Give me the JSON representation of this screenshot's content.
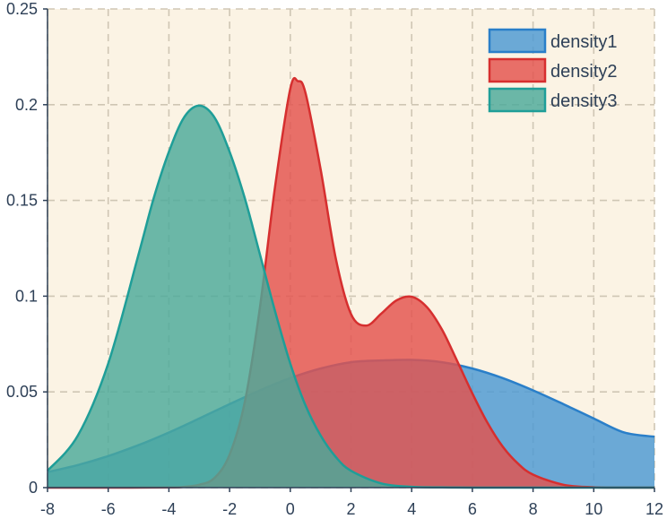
{
  "chart_data": {
    "type": "area",
    "title": "",
    "xlabel": "",
    "ylabel": "",
    "xlim": [
      -8,
      12
    ],
    "ylim": [
      0,
      0.25
    ],
    "x_ticks": [
      "-8",
      "-6",
      "-4",
      "-2",
      "0",
      "2",
      "4",
      "6",
      "8",
      "10",
      "12"
    ],
    "y_ticks": [
      "0",
      "0.05",
      "0.1",
      "0.15",
      "0.2",
      "0.25"
    ],
    "grid": true,
    "legend_position": "top-right",
    "plot_background": "#fbf3e4",
    "series": [
      {
        "name": "density1",
        "fill": "#4a98d3",
        "stroke": "#2a7fc9",
        "x": [
          -8,
          -7,
          -6,
          -5,
          -4,
          -3,
          -2,
          -1,
          0,
          1,
          2,
          3,
          4,
          5,
          6,
          7,
          8,
          9,
          10,
          11,
          12
        ],
        "y": [
          0.0081,
          0.0118,
          0.0165,
          0.0222,
          0.0288,
          0.0361,
          0.0436,
          0.0508,
          0.0572,
          0.0622,
          0.0655,
          0.0664,
          0.0667,
          0.0655,
          0.0622,
          0.0572,
          0.0508,
          0.0436,
          0.0361,
          0.0288,
          0.0266
        ]
      },
      {
        "name": "density2",
        "fill": "#e3524d",
        "stroke": "#d62f2f",
        "x": [
          -8,
          -6,
          -4,
          -3.5,
          -3,
          -2.5,
          -2,
          -1.5,
          -1,
          -0.5,
          0,
          0.25,
          0.5,
          1,
          1.5,
          2,
          2.5,
          3,
          3.5,
          4,
          4.5,
          5,
          5.5,
          6,
          6.5,
          7,
          7.5,
          8,
          9,
          10,
          11,
          12
        ],
        "y": [
          0,
          0,
          0.0001,
          0.0004,
          0.0015,
          0.005,
          0.0172,
          0.0446,
          0.0941,
          0.1573,
          0.2083,
          0.2123,
          0.2062,
          0.1662,
          0.1196,
          0.0907,
          0.0846,
          0.0909,
          0.0978,
          0.0997,
          0.0943,
          0.0825,
          0.0661,
          0.0492,
          0.0338,
          0.0214,
          0.0126,
          0.0068,
          0.0015,
          0.0002,
          0,
          0
        ]
      },
      {
        "name": "density3",
        "fill": "#4aaa9a",
        "stroke": "#1f9e98",
        "x": [
          -8,
          -7,
          -6,
          -5,
          -4.5,
          -4,
          -3.5,
          -3,
          -2.5,
          -2,
          -1.5,
          -1,
          -0.5,
          0,
          0.5,
          1,
          1.5,
          2,
          3,
          4,
          5,
          6,
          8,
          10,
          12
        ],
        "y": [
          0.0088,
          0.0272,
          0.0648,
          0.1218,
          0.1512,
          0.1754,
          0.1934,
          0.1995,
          0.1934,
          0.1754,
          0.1512,
          0.1218,
          0.092,
          0.0648,
          0.043,
          0.0272,
          0.016,
          0.0088,
          0.0022,
          0.0004,
          0.0001,
          0,
          0,
          0,
          0
        ]
      }
    ]
  }
}
